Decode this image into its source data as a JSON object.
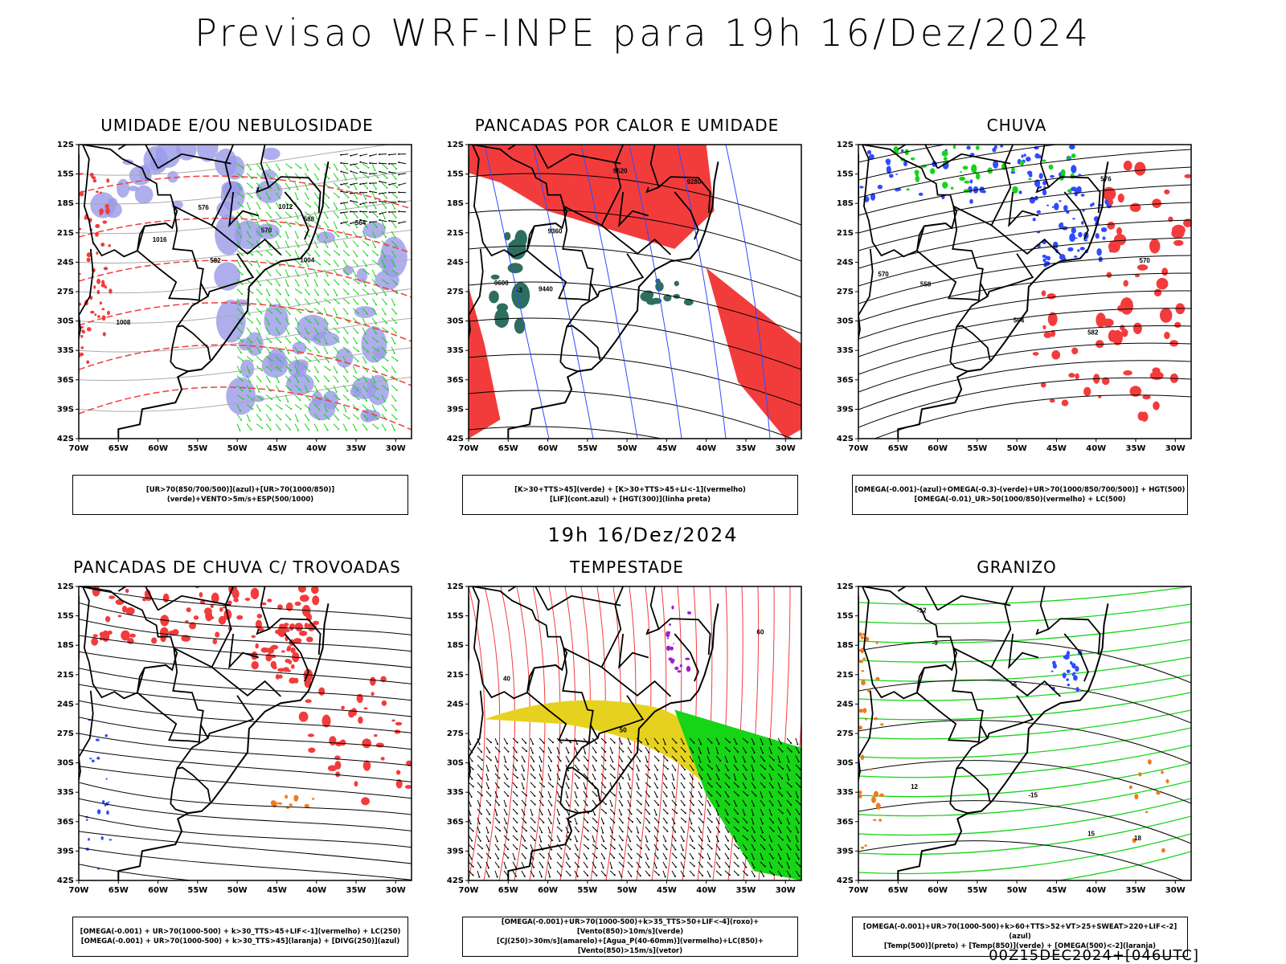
{
  "header": {
    "title": "Previsao WRF-INPE  para 19h 16/Dez/2024"
  },
  "middle": {
    "stamp": "19h 16/Dez/2024"
  },
  "footer": {
    "stamp": "00Z15DEC2024+[046UTC]"
  },
  "axes": {
    "lat_labels": [
      "12S",
      "15S",
      "18S",
      "21S",
      "24S",
      "27S",
      "30S",
      "33S",
      "36S",
      "39S",
      "42S"
    ],
    "lon_labels": [
      "70W",
      "65W",
      "60W",
      "55W",
      "50W",
      "45W",
      "40W",
      "35W",
      "30W"
    ]
  },
  "colors": {
    "red": "#f23c3c",
    "green": "#16d416",
    "blue": "#2f4bff",
    "lavender": "#9a9ae8",
    "darkgreen": "#2e6e5e",
    "yellow": "#e6d21e",
    "purple": "#a01ec8",
    "orange": "#ee7b1e",
    "black": "#000000"
  },
  "panels": [
    {
      "title": "UMIDADE E/OU NEBULOSIDADE",
      "legend": [
        "[UR>70(850/700/500)](azul)+[UR>70(1000/850)](verde)+VENTO>5m/s+ESP(500/1000)"
      ],
      "contours": [
        "1008",
        "1012",
        "1016",
        "1004",
        "576",
        "570",
        "564",
        "582",
        "588"
      ]
    },
    {
      "title": "PANCADAS POR CALOR E UMIDADE",
      "legend": [
        "[K>30+TTS>45](verde) + [K>30+TTS>45+LI<-1](vermelho)",
        "[LIF](cont.azul) + [HGT(300)](linha preta)"
      ],
      "contours": [
        "9600",
        "9520",
        "9440",
        "9360",
        "9280",
        "-3"
      ]
    },
    {
      "title": "CHUVA",
      "legend": [
        "[OMEGA(-0.001)-(azul)+OMEGA(-0.3)-(verde)+UR>70(1000/850/700/500)] + HGT(500)",
        "[OMEGA(-0.01)_UR>50(1000/850)(vermelho) + LC(500)"
      ],
      "contours": [
        "582",
        "576",
        "570",
        "564",
        "558",
        "570"
      ]
    },
    {
      "title": "PANCADAS DE CHUVA C/ TROVOADAS",
      "legend": [
        "[OMEGA(-0.001) + UR>70(1000-500) + k>30_TTS>45+LIF<-1](vermelho) + LC(250)",
        "[OMEGA(-0.001) + UR>70(1000-500) + k>30_TTS>45](laranja) + [DIVG(250)](azul)"
      ],
      "contours": []
    },
    {
      "title": "TEMPESTADE",
      "legend": [
        "[OMEGA(-0.001)+UR>70(1000-500)+k>35_TTS>50+LIF<-4](roxo)+[Vento(850)>10m/s](verde)",
        "[CJ(250)>30m/s](amarelo)+[Agua_P(40-60mm)](vermelho)+LC(850)+[Vento(850)>15m/s](vetor)"
      ],
      "contours": [
        "40",
        "50",
        "60"
      ]
    },
    {
      "title": "GRANIZO",
      "legend": [
        "[OMEGA(-0.001)+UR>70(1000-500)+k>60+TTS>52+VT>25+SWEAT>220+LIF<-2](azul)",
        "[Temp(500)](preto) + [Temp(850)](verde) + [OMEGA(500)<-2](laranja)"
      ],
      "contours": [
        "-12",
        "-15",
        "-9",
        "-6",
        "12",
        "15",
        "18"
      ]
    }
  ]
}
